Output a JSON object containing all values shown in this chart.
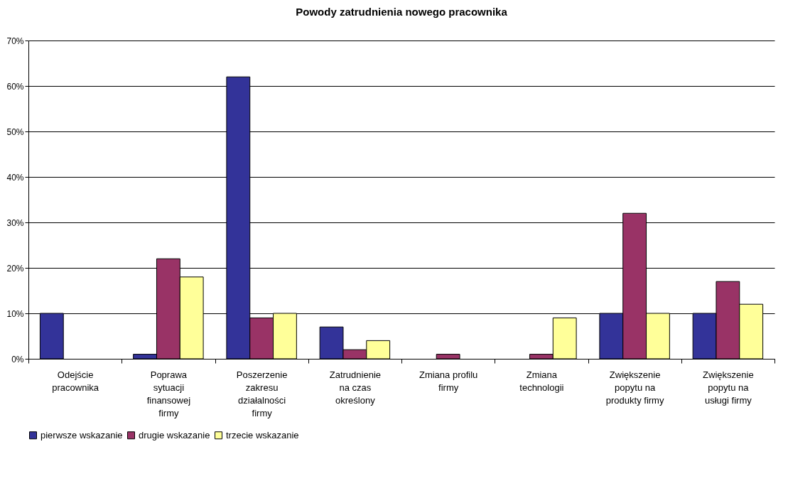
{
  "chart_data": {
    "type": "bar",
    "title": "Powody zatrudnienia nowego pracownika",
    "categories": [
      "Odejście pracownika",
      "Poprawa sytuacji finansowej firmy",
      "Poszerzenie zakresu działalności firmy",
      "Zatrudnienie na czas określony",
      "Zmiana profilu firmy",
      "Zmiana technologii",
      "Zwiększenie popytu na produkty firmy",
      "Zwiększenie popytu na usługi firmy"
    ],
    "series": [
      {
        "name": "pierwsze wskazanie",
        "color": "#333399",
        "values": [
          10,
          1,
          62,
          7,
          0,
          0,
          10,
          10
        ]
      },
      {
        "name": "drugie wskazanie",
        "color": "#993366",
        "values": [
          0,
          22,
          9,
          2,
          1,
          1,
          32,
          17
        ]
      },
      {
        "name": "trzecie wskazanie",
        "color": "#ffff99",
        "values": [
          0,
          18,
          10,
          4,
          0,
          9,
          10,
          12
        ]
      }
    ],
    "ylim": [
      0,
      70
    ],
    "yticks": [
      {
        "value": 0,
        "label": "0%"
      },
      {
        "value": 10,
        "label": "10%"
      },
      {
        "value": 20,
        "label": "20%"
      },
      {
        "value": 30,
        "label": "30%"
      },
      {
        "value": 40,
        "label": "40%"
      },
      {
        "value": 50,
        "label": "50%"
      },
      {
        "value": 60,
        "label": "60%"
      },
      {
        "value": 70,
        "label": "70%"
      }
    ],
    "grid": "y",
    "legend": "bottom"
  }
}
